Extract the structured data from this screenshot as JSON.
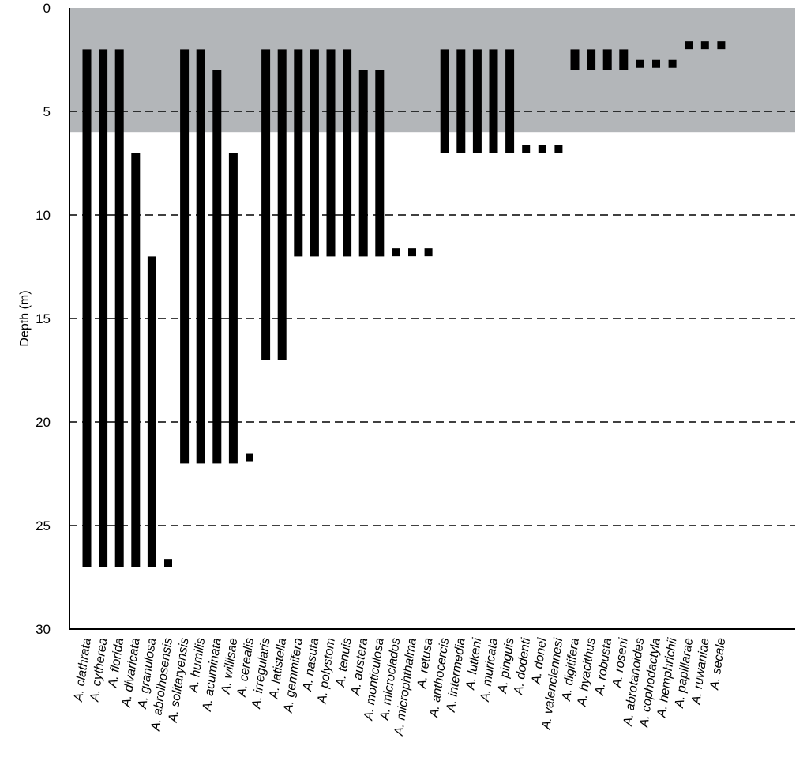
{
  "chart_data": {
    "type": "bar",
    "orientation": "vertical-range",
    "ylabel": "Depth (m)",
    "xlabel": "",
    "ylim": [
      0,
      30
    ],
    "y_inverted": true,
    "y_ticks": [
      0,
      5,
      10,
      15,
      20,
      25,
      30
    ],
    "gridlines_dashed_at": [
      5,
      10,
      15,
      20,
      25
    ],
    "shaded_depth_band": [
      0,
      6
    ],
    "colors": {
      "bar": "#000000",
      "shade": "#b3b6b9",
      "grid": "#000000"
    },
    "species": [
      {
        "label": "A. clathrata",
        "top": 2,
        "bottom": 27,
        "style": "solid"
      },
      {
        "label": "A. cytherea",
        "top": 2,
        "bottom": 27,
        "style": "solid"
      },
      {
        "label": "A. florida",
        "top": 2,
        "bottom": 27,
        "style": "solid"
      },
      {
        "label": "A. divaricata",
        "top": 7,
        "bottom": 27,
        "style": "solid"
      },
      {
        "label": "A. granulosa",
        "top": 12,
        "bottom": 27,
        "style": "solid"
      },
      {
        "label": "A. abrolhosensis",
        "depth": 26.8,
        "style": "point"
      },
      {
        "label": "A. solitaryensis",
        "top": 2,
        "bottom": 22,
        "style": "solid"
      },
      {
        "label": "A. humilis",
        "top": 2,
        "bottom": 22,
        "style": "solid"
      },
      {
        "label": "A. acuminata",
        "top": 3,
        "bottom": 22,
        "style": "solid"
      },
      {
        "label": "A. willisae",
        "top": 7,
        "bottom": 22,
        "style": "solid"
      },
      {
        "label": "A. cerealis",
        "depth": 21.7,
        "style": "point"
      },
      {
        "label": "A. irregularis",
        "top": 2,
        "bottom": 17,
        "style": "solid"
      },
      {
        "label": "A. latistella",
        "top": 2,
        "bottom": 17,
        "style": "solid"
      },
      {
        "label": "A. gemmifera",
        "top": 2,
        "bottom": 12,
        "style": "solid"
      },
      {
        "label": "A. nasuta",
        "top": 2,
        "bottom": 12,
        "style": "solid"
      },
      {
        "label": "A. polystom",
        "top": 2,
        "bottom": 12,
        "style": "solid"
      },
      {
        "label": "A. tenuis",
        "top": 2,
        "bottom": 12,
        "style": "solid"
      },
      {
        "label": "A. austera",
        "top": 3,
        "bottom": 12,
        "style": "solid"
      },
      {
        "label": "A. monticulosa",
        "top": 3,
        "bottom": 12,
        "style": "solid"
      },
      {
        "label": "A. microclados",
        "depth": 11.8,
        "style": "point"
      },
      {
        "label": "A. microphthalma",
        "depth": 11.8,
        "style": "point"
      },
      {
        "label": "A. retusa",
        "depth": 11.8,
        "style": "point"
      },
      {
        "label": "A. anthocercis",
        "top": 2,
        "bottom": 7,
        "style": "solid"
      },
      {
        "label": "A. intermedia",
        "top": 2,
        "bottom": 7,
        "style": "solid"
      },
      {
        "label": "A. lutkeni",
        "top": 2,
        "bottom": 7,
        "style": "solid"
      },
      {
        "label": "A. muricata",
        "top": 2,
        "bottom": 7,
        "style": "solid"
      },
      {
        "label": "A. pinguis",
        "top": 2,
        "bottom": 7,
        "style": "solid"
      },
      {
        "label": "A. dodenti",
        "depth": 6.8,
        "style": "point"
      },
      {
        "label": "A. donei",
        "depth": 6.8,
        "style": "point"
      },
      {
        "label": "A. valenciennesi",
        "depth": 6.8,
        "style": "point"
      },
      {
        "label": "A. digitifera",
        "top": 2,
        "bottom": 3,
        "style": "solid"
      },
      {
        "label": "A. hyacithus",
        "top": 2,
        "bottom": 3,
        "style": "solid"
      },
      {
        "label": "A. robusta",
        "top": 2,
        "bottom": 3,
        "style": "solid"
      },
      {
        "label": "A. roseni",
        "top": 2,
        "bottom": 3,
        "style": "solid"
      },
      {
        "label": "A. abrotanoides",
        "depth": 2.7,
        "style": "point"
      },
      {
        "label": "A. cophodactyla",
        "depth": 2.7,
        "style": "point"
      },
      {
        "label": "A. hemphrichii",
        "depth": 2.7,
        "style": "point"
      },
      {
        "label": "A. papillarae",
        "depth": 1.8,
        "style": "point"
      },
      {
        "label": "A. ruwaniae",
        "depth": 1.8,
        "style": "point"
      },
      {
        "label": "A. secale",
        "depth": 1.8,
        "style": "point"
      }
    ]
  }
}
